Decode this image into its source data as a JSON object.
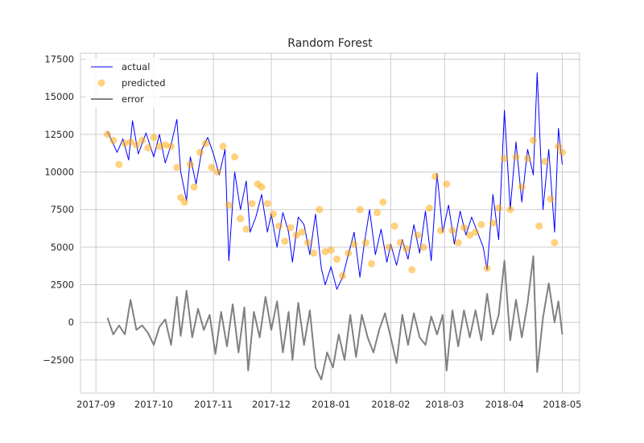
{
  "chart_data": {
    "type": "line",
    "title": "Random Forest",
    "xlabel": "",
    "ylabel": "",
    "x_range": [
      "2017-08-24",
      "2018-05-10"
    ],
    "ylim": [
      -4700,
      17900
    ],
    "y_ticks": [
      -2500,
      0,
      2500,
      5000,
      7500,
      10000,
      12500,
      15000,
      17500
    ],
    "y_tick_labels": [
      "−2500",
      "0",
      "2500",
      "5000",
      "7500",
      "10000",
      "12500",
      "15000",
      "17500"
    ],
    "x_ticks": [
      "2017-09-01",
      "2017-10-01",
      "2017-11-01",
      "2017-12-01",
      "2018-01-01",
      "2018-02-01",
      "2018-03-01",
      "2018-04-01",
      "2018-05-01"
    ],
    "x_tick_labels": [
      "2017-09",
      "2017-10",
      "2017-11",
      "2017-12",
      "2018-01",
      "2018-02",
      "2018-03",
      "2018-04",
      "2018-05"
    ],
    "grid": true,
    "legend": "top-left",
    "series": [
      {
        "name": "actual",
        "style": "line",
        "color": "#0000ff",
        "data": [
          [
            "2017-09-07",
            12700
          ],
          [
            "2017-09-12",
            11300
          ],
          [
            "2017-09-15",
            12200
          ],
          [
            "2017-09-18",
            10800
          ],
          [
            "2017-09-20",
            13400
          ],
          [
            "2017-09-23",
            11200
          ],
          [
            "2017-09-27",
            12600
          ],
          [
            "2017-10-01",
            11000
          ],
          [
            "2017-10-04",
            12500
          ],
          [
            "2017-10-07",
            10600
          ],
          [
            "2017-10-10",
            11800
          ],
          [
            "2017-10-13",
            13500
          ],
          [
            "2017-10-15",
            10000
          ],
          [
            "2017-10-18",
            8100
          ],
          [
            "2017-10-20",
            11000
          ],
          [
            "2017-10-23",
            9200
          ],
          [
            "2017-10-26",
            11500
          ],
          [
            "2017-10-29",
            12300
          ],
          [
            "2017-11-01",
            11200
          ],
          [
            "2017-11-04",
            9800
          ],
          [
            "2017-11-07",
            11500
          ],
          [
            "2017-11-09",
            4100
          ],
          [
            "2017-11-12",
            10000
          ],
          [
            "2017-11-15",
            7500
          ],
          [
            "2017-11-18",
            9400
          ],
          [
            "2017-11-20",
            6000
          ],
          [
            "2017-11-23",
            7000
          ],
          [
            "2017-11-26",
            8500
          ],
          [
            "2017-11-29",
            6000
          ],
          [
            "2017-12-01",
            7200
          ],
          [
            "2017-12-04",
            5000
          ],
          [
            "2017-12-07",
            7300
          ],
          [
            "2017-12-10",
            6000
          ],
          [
            "2017-12-12",
            4000
          ],
          [
            "2017-12-15",
            7000
          ],
          [
            "2017-12-18",
            6500
          ],
          [
            "2017-12-21",
            4500
          ],
          [
            "2017-12-24",
            7200
          ],
          [
            "2017-12-27",
            3600
          ],
          [
            "2017-12-29",
            2500
          ],
          [
            "2018-01-01",
            3700
          ],
          [
            "2018-01-04",
            2200
          ],
          [
            "2018-01-07",
            3000
          ],
          [
            "2018-01-10",
            4500
          ],
          [
            "2018-01-13",
            6000
          ],
          [
            "2018-01-16",
            3000
          ],
          [
            "2018-01-18",
            5000
          ],
          [
            "2018-01-21",
            7500
          ],
          [
            "2018-01-24",
            4500
          ],
          [
            "2018-01-27",
            6200
          ],
          [
            "2018-01-30",
            4000
          ],
          [
            "2018-02-01",
            5200
          ],
          [
            "2018-02-04",
            3800
          ],
          [
            "2018-02-07",
            5500
          ],
          [
            "2018-02-10",
            4200
          ],
          [
            "2018-02-13",
            6500
          ],
          [
            "2018-02-16",
            4600
          ],
          [
            "2018-02-19",
            7400
          ],
          [
            "2018-02-22",
            4100
          ],
          [
            "2018-02-25",
            9900
          ],
          [
            "2018-02-28",
            6000
          ],
          [
            "2018-03-03",
            7800
          ],
          [
            "2018-03-06",
            5200
          ],
          [
            "2018-03-09",
            7400
          ],
          [
            "2018-03-12",
            5800
          ],
          [
            "2018-03-15",
            7000
          ],
          [
            "2018-03-18",
            6000
          ],
          [
            "2018-03-21",
            5000
          ],
          [
            "2018-03-23",
            3500
          ],
          [
            "2018-03-26",
            8500
          ],
          [
            "2018-03-29",
            5500
          ],
          [
            "2018-04-01",
            14100
          ],
          [
            "2018-04-04",
            7500
          ],
          [
            "2018-04-07",
            12000
          ],
          [
            "2018-04-10",
            8000
          ],
          [
            "2018-04-13",
            11500
          ],
          [
            "2018-04-16",
            9800
          ],
          [
            "2018-04-18",
            16600
          ],
          [
            "2018-04-21",
            7500
          ],
          [
            "2018-04-24",
            11500
          ],
          [
            "2018-04-27",
            6000
          ],
          [
            "2018-04-29",
            12900
          ],
          [
            "2018-05-01",
            10500
          ]
        ]
      },
      {
        "name": "predicted",
        "style": "scatter",
        "color": "#ffa500",
        "data": [
          [
            "2017-09-07",
            12500
          ],
          [
            "2017-09-10",
            12100
          ],
          [
            "2017-09-13",
            10500
          ],
          [
            "2017-09-16",
            11900
          ],
          [
            "2017-09-19",
            12000
          ],
          [
            "2017-09-22",
            11800
          ],
          [
            "2017-09-25",
            12100
          ],
          [
            "2017-09-28",
            11600
          ],
          [
            "2017-10-01",
            12300
          ],
          [
            "2017-10-04",
            11700
          ],
          [
            "2017-10-07",
            11800
          ],
          [
            "2017-10-10",
            11700
          ],
          [
            "2017-10-13",
            10300
          ],
          [
            "2017-10-15",
            8300
          ],
          [
            "2017-10-17",
            8000
          ],
          [
            "2017-10-20",
            10500
          ],
          [
            "2017-10-22",
            9000
          ],
          [
            "2017-10-25",
            11300
          ],
          [
            "2017-10-28",
            11900
          ],
          [
            "2017-10-31",
            10300
          ],
          [
            "2017-11-03",
            10000
          ],
          [
            "2017-11-06",
            11700
          ],
          [
            "2017-11-09",
            7800
          ],
          [
            "2017-11-12",
            11000
          ],
          [
            "2017-11-15",
            6900
          ],
          [
            "2017-11-18",
            6200
          ],
          [
            "2017-11-21",
            7900
          ],
          [
            "2017-11-24",
            9200
          ],
          [
            "2017-11-26",
            9000
          ],
          [
            "2017-11-29",
            7900
          ],
          [
            "2017-12-02",
            7200
          ],
          [
            "2017-12-05",
            6400
          ],
          [
            "2017-12-08",
            5400
          ],
          [
            "2017-12-11",
            6300
          ],
          [
            "2017-12-14",
            5800
          ],
          [
            "2017-12-17",
            6000
          ],
          [
            "2017-12-20",
            5300
          ],
          [
            "2017-12-23",
            4600
          ],
          [
            "2017-12-26",
            7500
          ],
          [
            "2017-12-29",
            4700
          ],
          [
            "2018-01-01",
            4800
          ],
          [
            "2018-01-04",
            4200
          ],
          [
            "2018-01-07",
            3100
          ],
          [
            "2018-01-10",
            4600
          ],
          [
            "2018-01-13",
            5200
          ],
          [
            "2018-01-16",
            7500
          ],
          [
            "2018-01-19",
            5300
          ],
          [
            "2018-01-22",
            3900
          ],
          [
            "2018-01-25",
            7300
          ],
          [
            "2018-01-28",
            8000
          ],
          [
            "2018-01-31",
            5000
          ],
          [
            "2018-02-03",
            6400
          ],
          [
            "2018-02-06",
            5300
          ],
          [
            "2018-02-09",
            4900
          ],
          [
            "2018-02-12",
            3500
          ],
          [
            "2018-02-15",
            5800
          ],
          [
            "2018-02-18",
            5000
          ],
          [
            "2018-02-21",
            7600
          ],
          [
            "2018-02-24",
            9700
          ],
          [
            "2018-02-27",
            6100
          ],
          [
            "2018-03-02",
            9200
          ],
          [
            "2018-03-05",
            6100
          ],
          [
            "2018-03-08",
            5300
          ],
          [
            "2018-03-11",
            6300
          ],
          [
            "2018-03-14",
            5800
          ],
          [
            "2018-03-17",
            6000
          ],
          [
            "2018-03-20",
            6500
          ],
          [
            "2018-03-23",
            3600
          ],
          [
            "2018-03-26",
            6600
          ],
          [
            "2018-03-29",
            7600
          ],
          [
            "2018-04-01",
            10900
          ],
          [
            "2018-04-04",
            7500
          ],
          [
            "2018-04-07",
            11000
          ],
          [
            "2018-04-10",
            9000
          ],
          [
            "2018-04-13",
            10900
          ],
          [
            "2018-04-16",
            12100
          ],
          [
            "2018-04-19",
            6400
          ],
          [
            "2018-04-22",
            10700
          ],
          [
            "2018-04-25",
            8200
          ],
          [
            "2018-04-27",
            5300
          ],
          [
            "2018-04-29",
            11700
          ],
          [
            "2018-05-01",
            11300
          ]
        ]
      },
      {
        "name": "error",
        "style": "line",
        "color": "#808080",
        "data": [
          [
            "2017-09-07",
            300
          ],
          [
            "2017-09-10",
            -800
          ],
          [
            "2017-09-13",
            -200
          ],
          [
            "2017-09-16",
            -800
          ],
          [
            "2017-09-19",
            1500
          ],
          [
            "2017-09-22",
            -500
          ],
          [
            "2017-09-25",
            -200
          ],
          [
            "2017-09-28",
            -700
          ],
          [
            "2017-10-01",
            -1500
          ],
          [
            "2017-10-04",
            -300
          ],
          [
            "2017-10-07",
            200
          ],
          [
            "2017-10-10",
            -1500
          ],
          [
            "2017-10-13",
            1700
          ],
          [
            "2017-10-15",
            -900
          ],
          [
            "2017-10-18",
            2100
          ],
          [
            "2017-10-21",
            -1000
          ],
          [
            "2017-10-24",
            900
          ],
          [
            "2017-10-27",
            -500
          ],
          [
            "2017-10-30",
            500
          ],
          [
            "2017-11-02",
            -2100
          ],
          [
            "2017-11-05",
            700
          ],
          [
            "2017-11-08",
            -1600
          ],
          [
            "2017-11-11",
            1200
          ],
          [
            "2017-11-14",
            -2000
          ],
          [
            "2017-11-17",
            1000
          ],
          [
            "2017-11-19",
            -3200
          ],
          [
            "2017-11-22",
            700
          ],
          [
            "2017-11-25",
            -1000
          ],
          [
            "2017-11-28",
            1700
          ],
          [
            "2017-12-01",
            -500
          ],
          [
            "2017-12-04",
            1400
          ],
          [
            "2017-12-07",
            -2000
          ],
          [
            "2017-12-10",
            700
          ],
          [
            "2017-12-12",
            -2500
          ],
          [
            "2017-12-15",
            1300
          ],
          [
            "2017-12-18",
            -1500
          ],
          [
            "2017-12-21",
            800
          ],
          [
            "2017-12-24",
            -3000
          ],
          [
            "2017-12-27",
            -3800
          ],
          [
            "2017-12-30",
            -2000
          ],
          [
            "2018-01-02",
            -3000
          ],
          [
            "2018-01-05",
            -800
          ],
          [
            "2018-01-08",
            -2500
          ],
          [
            "2018-01-11",
            500
          ],
          [
            "2018-01-14",
            -2300
          ],
          [
            "2018-01-17",
            500
          ],
          [
            "2018-01-20",
            -1000
          ],
          [
            "2018-01-23",
            -2000
          ],
          [
            "2018-01-26",
            -500
          ],
          [
            "2018-01-29",
            600
          ],
          [
            "2018-02-01",
            -1000
          ],
          [
            "2018-02-04",
            -2700
          ],
          [
            "2018-02-07",
            500
          ],
          [
            "2018-02-10",
            -1500
          ],
          [
            "2018-02-13",
            600
          ],
          [
            "2018-02-16",
            -1000
          ],
          [
            "2018-02-19",
            -1500
          ],
          [
            "2018-02-22",
            400
          ],
          [
            "2018-02-25",
            -800
          ],
          [
            "2018-02-28",
            500
          ],
          [
            "2018-03-02",
            -3200
          ],
          [
            "2018-03-05",
            800
          ],
          [
            "2018-03-08",
            -1600
          ],
          [
            "2018-03-11",
            800
          ],
          [
            "2018-03-14",
            -1000
          ],
          [
            "2018-03-17",
            800
          ],
          [
            "2018-03-20",
            -1200
          ],
          [
            "2018-03-23",
            1900
          ],
          [
            "2018-03-26",
            -800
          ],
          [
            "2018-03-29",
            500
          ],
          [
            "2018-04-01",
            4100
          ],
          [
            "2018-04-04",
            -1200
          ],
          [
            "2018-04-07",
            1500
          ],
          [
            "2018-04-10",
            -1000
          ],
          [
            "2018-04-13",
            1300
          ],
          [
            "2018-04-16",
            4400
          ],
          [
            "2018-04-18",
            -3300
          ],
          [
            "2018-04-21",
            300
          ],
          [
            "2018-04-24",
            2600
          ],
          [
            "2018-04-27",
            0
          ],
          [
            "2018-04-29",
            1400
          ],
          [
            "2018-05-01",
            -800
          ]
        ]
      }
    ]
  }
}
